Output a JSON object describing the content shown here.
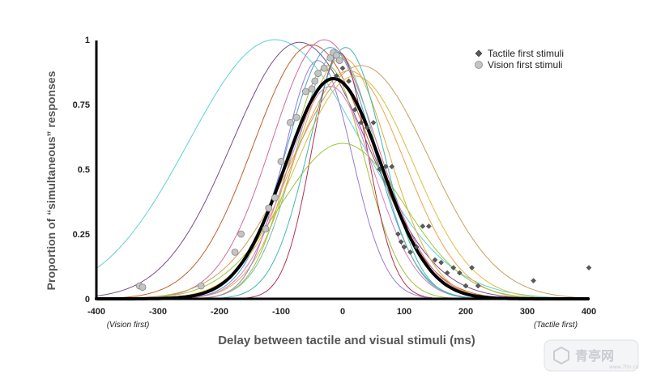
{
  "chart_data": {
    "type": "line",
    "title": "",
    "xlabel": "Delay between tactile and visual stimuli (ms)",
    "ylabel": "Proportion of “simultaneous” responses",
    "xlim": [
      -400,
      400
    ],
    "ylim": [
      0,
      1
    ],
    "x_ticks": [
      "-400",
      "-300",
      "-200",
      "-100",
      "0",
      "100",
      "200",
      "300",
      "400"
    ],
    "y_ticks": [
      "0",
      "0.25",
      "0.5",
      "0.75",
      "1"
    ],
    "x_notes": {
      "left": "(Vision first)",
      "right": "(Tactile first)"
    },
    "legend": {
      "position": "top-right",
      "entries": [
        {
          "label": "Tactile first stimuli",
          "marker": "diamond",
          "color": "#5a5a5a"
        },
        {
          "label": "Vision first stimuli",
          "marker": "circle",
          "color": "#c4c4c4"
        }
      ]
    },
    "mean_fit": {
      "amplitude": 0.85,
      "mu": -15,
      "sigma": 78,
      "color": "#000000"
    },
    "subject_fits": [
      {
        "amplitude": 1.0,
        "mu": -110,
        "sigma": 140,
        "color": "#5fd0d3"
      },
      {
        "amplitude": 0.99,
        "mu": -70,
        "sigma": 110,
        "color": "#7a4a8c"
      },
      {
        "amplitude": 0.98,
        "mu": -50,
        "sigma": 95,
        "color": "#c0602a"
      },
      {
        "amplitude": 1.0,
        "mu": -30,
        "sigma": 85,
        "color": "#d06a9a"
      },
      {
        "amplitude": 0.97,
        "mu": -20,
        "sigma": 70,
        "color": "#4aa0d8"
      },
      {
        "amplitude": 0.95,
        "mu": -10,
        "sigma": 65,
        "color": "#6cc0a0"
      },
      {
        "amplitude": 0.93,
        "mu": 0,
        "sigma": 75,
        "color": "#e0b040"
      },
      {
        "amplitude": 0.9,
        "mu": -25,
        "sigma": 60,
        "color": "#a0c040"
      },
      {
        "amplitude": 0.88,
        "mu": 10,
        "sigma": 90,
        "color": "#f0a050"
      },
      {
        "amplitude": 0.95,
        "mu": -5,
        "sigma": 45,
        "color": "#b03050"
      },
      {
        "amplitude": 0.86,
        "mu": 20,
        "sigma": 95,
        "color": "#d8c040"
      },
      {
        "amplitude": 0.92,
        "mu": -40,
        "sigma": 55,
        "color": "#9a7ad0"
      },
      {
        "amplitude": 0.6,
        "mu": 0,
        "sigma": 100,
        "color": "#9ac83a"
      },
      {
        "amplitude": 0.82,
        "mu": -20,
        "sigma": 70,
        "color": "#e07ac0"
      },
      {
        "amplitude": 0.97,
        "mu": 5,
        "sigma": 60,
        "color": "#40b8b0"
      },
      {
        "amplitude": 0.9,
        "mu": 30,
        "sigma": 110,
        "color": "#c8a060"
      }
    ],
    "tactile_first_points": [
      [
        -10,
        0.86
      ],
      [
        0,
        0.89
      ],
      [
        10,
        0.84
      ],
      [
        20,
        0.73
      ],
      [
        30,
        0.68
      ],
      [
        40,
        0.66
      ],
      [
        50,
        0.68
      ],
      [
        60,
        0.5
      ],
      [
        70,
        0.51
      ],
      [
        80,
        0.51
      ],
      [
        90,
        0.25
      ],
      [
        95,
        0.22
      ],
      [
        100,
        0.2
      ],
      [
        110,
        0.18
      ],
      [
        120,
        0.2
      ],
      [
        130,
        0.28
      ],
      [
        140,
        0.28
      ],
      [
        150,
        0.15
      ],
      [
        160,
        0.14
      ],
      [
        170,
        0.1
      ],
      [
        180,
        0.12
      ],
      [
        190,
        0.1
      ],
      [
        200,
        0.05
      ],
      [
        210,
        0.12
      ],
      [
        220,
        0.05
      ],
      [
        310,
        0.07
      ],
      [
        400,
        0.12
      ]
    ],
    "vision_first_points": [
      [
        -330,
        0.05
      ],
      [
        -325,
        0.045
      ],
      [
        -230,
        0.05
      ],
      [
        -175,
        0.18
      ],
      [
        -165,
        0.25
      ],
      [
        -125,
        0.27
      ],
      [
        -120,
        0.35
      ],
      [
        -110,
        0.39
      ],
      [
        -100,
        0.53
      ],
      [
        -85,
        0.68
      ],
      [
        -75,
        0.7
      ],
      [
        -60,
        0.8
      ],
      [
        -50,
        0.81
      ],
      [
        -45,
        0.84
      ],
      [
        -40,
        0.87
      ],
      [
        -30,
        0.89
      ],
      [
        -20,
        0.93
      ],
      [
        -15,
        0.95
      ],
      [
        -10,
        0.94
      ],
      [
        -5,
        0.92
      ]
    ]
  },
  "watermark": {
    "text": "青亭网",
    "sub": "www.7tin.cn"
  }
}
